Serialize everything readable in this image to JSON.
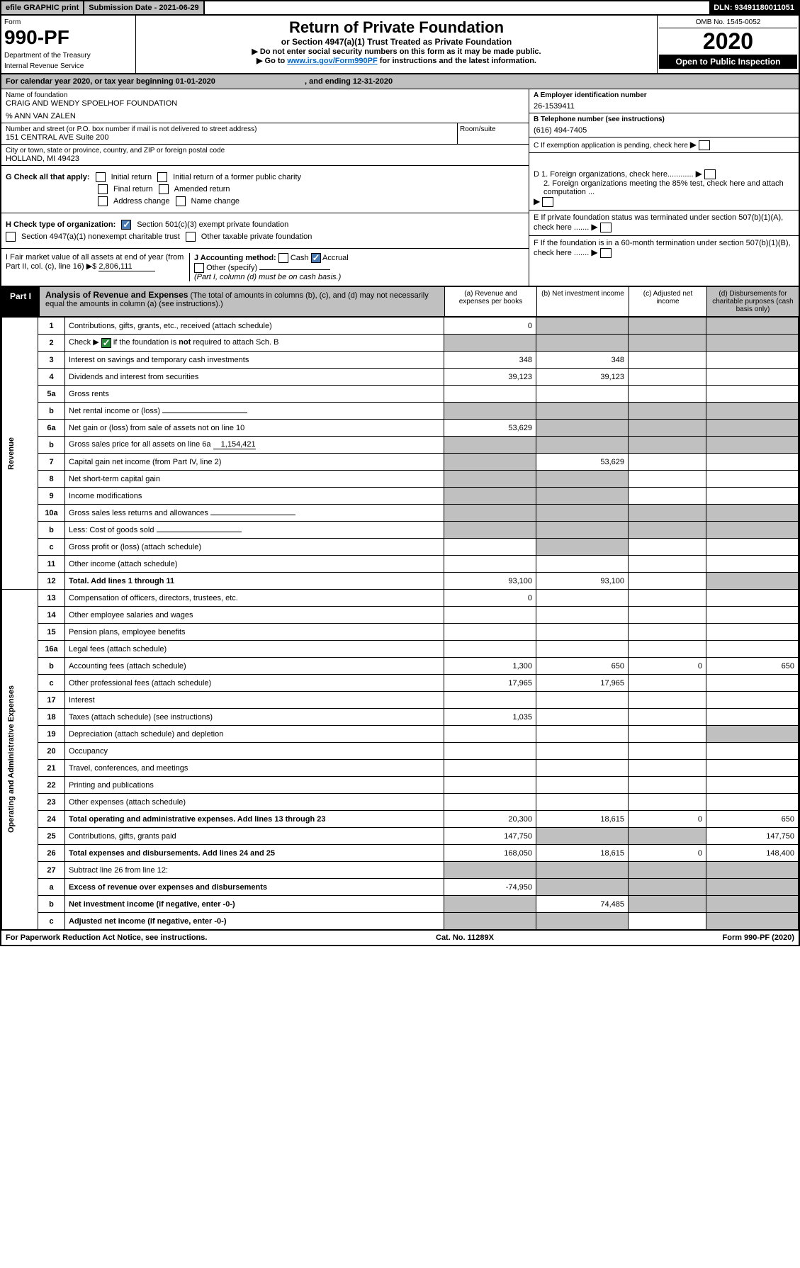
{
  "topbar": {
    "efile": "efile GRAPHIC print",
    "subdate_label": "Submission Date - 2021-06-29",
    "dln": "DLN: 93491180011051"
  },
  "header": {
    "form_label": "Form",
    "form_num": "990-PF",
    "dept": "Department of the Treasury",
    "irs": "Internal Revenue Service",
    "title": "Return of Private Foundation",
    "subtitle": "or Section 4947(a)(1) Trust Treated as Private Foundation",
    "note1": "▶ Do not enter social security numbers on this form as it may be made public.",
    "note2_pre": "▶ Go to ",
    "note2_link": "www.irs.gov/Form990PF",
    "note2_post": " for instructions and the latest information.",
    "omb": "OMB No. 1545-0052",
    "year": "2020",
    "open": "Open to Public Inspection"
  },
  "cal": {
    "text_a": "For calendar year 2020, or tax year beginning 01-01-2020",
    "text_b": ", and ending 12-31-2020"
  },
  "info": {
    "name_lbl": "Name of foundation",
    "name_val": "CRAIG AND WENDY SPOELHOF FOUNDATION",
    "care_of": "% ANN VAN ZALEN",
    "addr_lbl": "Number and street (or P.O. box number if mail is not delivered to street address)",
    "addr_val": "151 CENTRAL AVE Suite 200",
    "room_lbl": "Room/suite",
    "city_lbl": "City or town, state or province, country, and ZIP or foreign postal code",
    "city_val": "HOLLAND, MI  49423",
    "a_lbl": "A Employer identification number",
    "a_val": "26-1539411",
    "b_lbl": "B Telephone number (see instructions)",
    "b_val": "(616) 494-7405",
    "c_lbl": "C If exemption application is pending, check here",
    "d1": "D 1. Foreign organizations, check here............",
    "d2": "2. Foreign organizations meeting the 85% test, check here and attach computation ...",
    "e": "E  If private foundation status was terminated under section 507(b)(1)(A), check here .......",
    "f": "F  If the foundation is in a 60-month termination under section 507(b)(1)(B), check here ......."
  },
  "checks": {
    "g_lbl": "G Check all that apply:",
    "g_opts": [
      "Initial return",
      "Initial return of a former public charity",
      "Final return",
      "Amended return",
      "Address change",
      "Name change"
    ],
    "h_lbl": "H Check type of organization:",
    "h1": "Section 501(c)(3) exempt private foundation",
    "h2": "Section 4947(a)(1) nonexempt charitable trust",
    "h3": "Other taxable private foundation",
    "i_lbl": "I Fair market value of all assets at end of year (from Part II, col. (c), line 16) ▶$ ",
    "i_val": "2,806,111",
    "j_lbl": "J Accounting method:",
    "j_opts": [
      "Cash",
      "Accrual",
      "Other (specify)"
    ],
    "j_note": "(Part I, column (d) must be on cash basis.)"
  },
  "part1": {
    "tab": "Part I",
    "title": "Analysis of Revenue and Expenses",
    "desc": " (The total of amounts in columns (b), (c), and (d) may not necessarily equal the amounts in column (a) (see instructions).)",
    "col_a": "(a)   Revenue and expenses per books",
    "col_b": "(b)   Net investment income",
    "col_c": "(c)   Adjusted net income",
    "col_d": "(d)   Disbursements for charitable purposes (cash basis only)"
  },
  "rot_labels": {
    "rev": "Revenue",
    "exp": "Operating and Administrative Expenses"
  },
  "rows": [
    {
      "n": "1",
      "d": "Contributions, gifts, grants, etc., received (attach schedule)",
      "a": "0",
      "grey_bcd": true
    },
    {
      "n": "2",
      "d": "Check ▶ ✓ if the foundation is not required to attach Sch. B",
      "grey_all": true,
      "greencheck": true
    },
    {
      "n": "3",
      "d": "Interest on savings and temporary cash investments",
      "a": "348",
      "b": "348"
    },
    {
      "n": "4",
      "d": "Dividends and interest from securities",
      "a": "39,123",
      "b": "39,123"
    },
    {
      "n": "5a",
      "d": "Gross rents"
    },
    {
      "n": "b",
      "d": "Net rental income or (loss)",
      "grey_all": true,
      "inline_box": true
    },
    {
      "n": "6a",
      "d": "Net gain or (loss) from sale of assets not on line 10",
      "a": "53,629",
      "grey_bcd": true
    },
    {
      "n": "b",
      "d": "Gross sales price for all assets on line 6a",
      "inline_val": "1,154,421",
      "grey_all": true
    },
    {
      "n": "7",
      "d": "Capital gain net income (from Part IV, line 2)",
      "b": "53,629",
      "grey_a": true
    },
    {
      "n": "8",
      "d": "Net short-term capital gain",
      "grey_ab": true
    },
    {
      "n": "9",
      "d": "Income modifications",
      "grey_ab": true
    },
    {
      "n": "10a",
      "d": "Gross sales less returns and allowances",
      "grey_all": true,
      "inline_box": true
    },
    {
      "n": "b",
      "d": "Less: Cost of goods sold",
      "grey_all": true,
      "inline_box": true
    },
    {
      "n": "c",
      "d": "Gross profit or (loss) (attach schedule)",
      "grey_b": true
    },
    {
      "n": "11",
      "d": "Other income (attach schedule)"
    },
    {
      "n": "12",
      "d": "Total. Add lines 1 through 11",
      "a": "93,100",
      "b": "93,100",
      "bold": true,
      "grey_d": true
    },
    {
      "n": "13",
      "d": "Compensation of officers, directors, trustees, etc.",
      "a": "0",
      "sect": "exp"
    },
    {
      "n": "14",
      "d": "Other employee salaries and wages"
    },
    {
      "n": "15",
      "d": "Pension plans, employee benefits"
    },
    {
      "n": "16a",
      "d": "Legal fees (attach schedule)"
    },
    {
      "n": "b",
      "d": "Accounting fees (attach schedule)",
      "a": "1,300",
      "b": "650",
      "c": "0",
      "dd": "650"
    },
    {
      "n": "c",
      "d": "Other professional fees (attach schedule)",
      "a": "17,965",
      "b": "17,965"
    },
    {
      "n": "17",
      "d": "Interest"
    },
    {
      "n": "18",
      "d": "Taxes (attach schedule) (see instructions)",
      "a": "1,035"
    },
    {
      "n": "19",
      "d": "Depreciation (attach schedule) and depletion",
      "grey_d": true
    },
    {
      "n": "20",
      "d": "Occupancy"
    },
    {
      "n": "21",
      "d": "Travel, conferences, and meetings"
    },
    {
      "n": "22",
      "d": "Printing and publications"
    },
    {
      "n": "23",
      "d": "Other expenses (attach schedule)"
    },
    {
      "n": "24",
      "d": "Total operating and administrative expenses. Add lines 13 through 23",
      "a": "20,300",
      "b": "18,615",
      "c": "0",
      "dd": "650",
      "bold": true
    },
    {
      "n": "25",
      "d": "Contributions, gifts, grants paid",
      "a": "147,750",
      "dd": "147,750",
      "grey_bc": true
    },
    {
      "n": "26",
      "d": "Total expenses and disbursements. Add lines 24 and 25",
      "a": "168,050",
      "b": "18,615",
      "c": "0",
      "dd": "148,400",
      "bold": true
    },
    {
      "n": "27",
      "d": "Subtract line 26 from line 12:",
      "grey_all": true
    },
    {
      "n": "a",
      "d": "Excess of revenue over expenses and disbursements",
      "a": "-74,950",
      "bold": true,
      "grey_bcd": true
    },
    {
      "n": "b",
      "d": "Net investment income (if negative, enter -0-)",
      "b": "74,485",
      "bold": true,
      "grey_a": true,
      "grey_cd": true
    },
    {
      "n": "c",
      "d": "Adjusted net income (if negative, enter -0-)",
      "bold": true,
      "grey_ab": true,
      "grey_d": true
    }
  ],
  "footer": {
    "left": "For Paperwork Reduction Act Notice, see instructions.",
    "mid": "Cat. No. 11289X",
    "right": "Form 990-PF (2020)"
  }
}
